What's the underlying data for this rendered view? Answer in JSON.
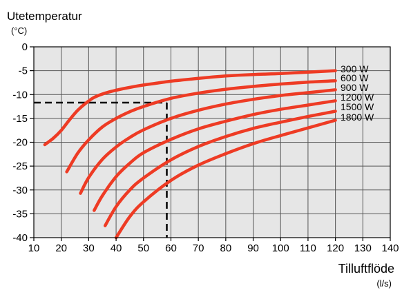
{
  "chart_data": {
    "type": "line",
    "ylabel": "Utetemperatur",
    "yunit": "(°C)",
    "xlabel": "Tilluftflöde",
    "xunit": "(l/s)",
    "xlim": [
      10,
      140
    ],
    "ylim": [
      -40,
      0
    ],
    "xticks": [
      "10",
      "20",
      "30",
      "40",
      "50",
      "60",
      "70",
      "80",
      "90",
      "100",
      "110",
      "120",
      "130",
      "140"
    ],
    "yticks": [
      "0",
      "-5",
      "-10",
      "-15",
      "-20",
      "-25",
      "-30",
      "-35",
      "-40"
    ],
    "grid": true,
    "series": [
      {
        "name": "300 W",
        "color": "#ee3b24",
        "x": [
          14,
          17,
          20,
          23,
          26,
          29,
          32,
          36,
          40,
          45,
          50,
          55,
          60,
          70,
          80,
          90,
          100,
          110,
          120
        ],
        "y": [
          -20.5,
          -19.2,
          -17.5,
          -15.3,
          -13.3,
          -11.8,
          -10.6,
          -9.7,
          -9.1,
          -8.5,
          -8.0,
          -7.6,
          -7.2,
          -6.6,
          -6.1,
          -5.8,
          -5.6,
          -5.3,
          -5.0
        ]
      },
      {
        "name": "600 W",
        "color": "#ee3b24",
        "x": [
          22,
          26,
          30,
          35,
          40,
          45,
          50,
          60,
          70,
          80,
          90,
          100,
          110,
          120
        ],
        "y": [
          -26.2,
          -22.3,
          -19.5,
          -16.8,
          -15.0,
          -13.6,
          -12.5,
          -10.8,
          -9.7,
          -8.9,
          -8.3,
          -7.8,
          -7.4,
          -7.1
        ]
      },
      {
        "name": "900 W",
        "color": "#ee3b24",
        "x": [
          27,
          30,
          35,
          40,
          45,
          50,
          60,
          70,
          80,
          90,
          100,
          110,
          120
        ],
        "y": [
          -30.7,
          -27.4,
          -23.6,
          -21.0,
          -19.0,
          -17.4,
          -15.0,
          -13.3,
          -12.0,
          -11.0,
          -10.2,
          -9.6,
          -9.0
        ]
      },
      {
        "name": "1200 W",
        "color": "#ee3b24",
        "x": [
          32,
          35,
          40,
          45,
          50,
          60,
          70,
          80,
          90,
          100,
          110,
          120
        ],
        "y": [
          -34.3,
          -31.2,
          -27.2,
          -24.4,
          -22.2,
          -19.4,
          -17.2,
          -15.6,
          -14.2,
          -13.1,
          -12.2,
          -11.3
        ]
      },
      {
        "name": "1500 W",
        "color": "#ee3b24",
        "x": [
          36,
          40,
          45,
          50,
          60,
          70,
          80,
          90,
          100,
          110,
          120
        ],
        "y": [
          -37.5,
          -33.5,
          -30.0,
          -27.5,
          -23.7,
          -20.9,
          -18.8,
          -17.1,
          -15.8,
          -14.6,
          -13.5
        ]
      },
      {
        "name": "1800 W",
        "color": "#ee3b24",
        "x": [
          40,
          45,
          50,
          60,
          70,
          80,
          90,
          100,
          110,
          120
        ],
        "y": [
          -40.0,
          -35.6,
          -32.5,
          -28.0,
          -24.8,
          -22.4,
          -20.3,
          -18.6,
          -17.0,
          -15.4
        ]
      }
    ],
    "reference_lines": {
      "x": 58.5,
      "y": -11.7,
      "color": "#000000"
    }
  }
}
